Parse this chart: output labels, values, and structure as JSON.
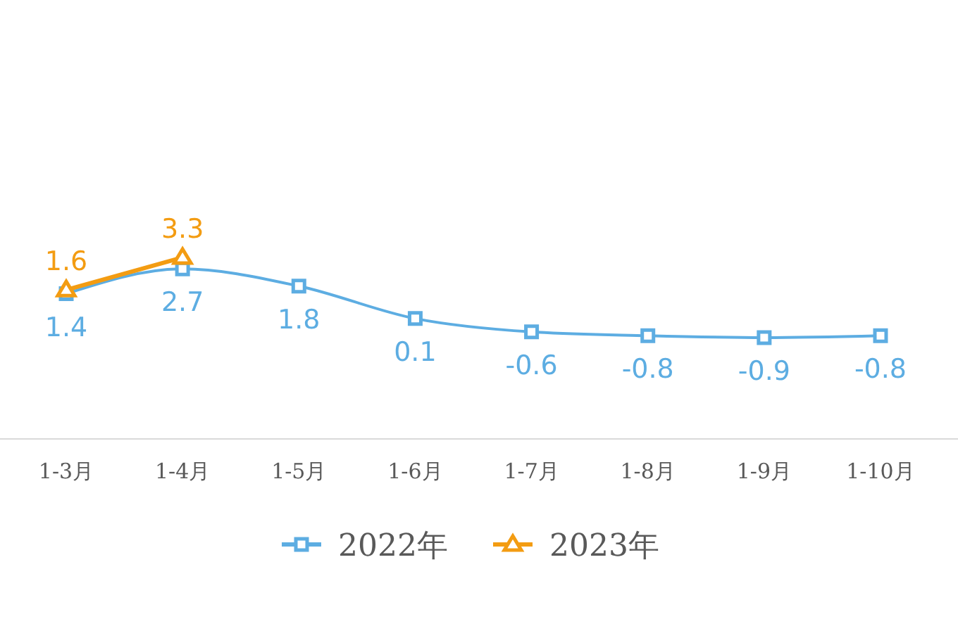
{
  "chart_data": {
    "type": "line",
    "categories": [
      "1-3月",
      "1-4月",
      "1-5月",
      "1-6月",
      "1-7月",
      "1-8月",
      "1-9月",
      "1-10月"
    ],
    "series": [
      {
        "name": "2022年",
        "color": "#5dade2",
        "marker": "square",
        "values": [
          1.4,
          2.7,
          1.8,
          0.1,
          -0.6,
          -0.8,
          -0.9,
          -0.8
        ]
      },
      {
        "name": "2023年",
        "color": "#f39c12",
        "marker": "triangle",
        "values": [
          1.6,
          3.3,
          null,
          null,
          null,
          null,
          null,
          null
        ]
      }
    ],
    "data_labels": true,
    "legend": "bottom",
    "grid": false
  }
}
